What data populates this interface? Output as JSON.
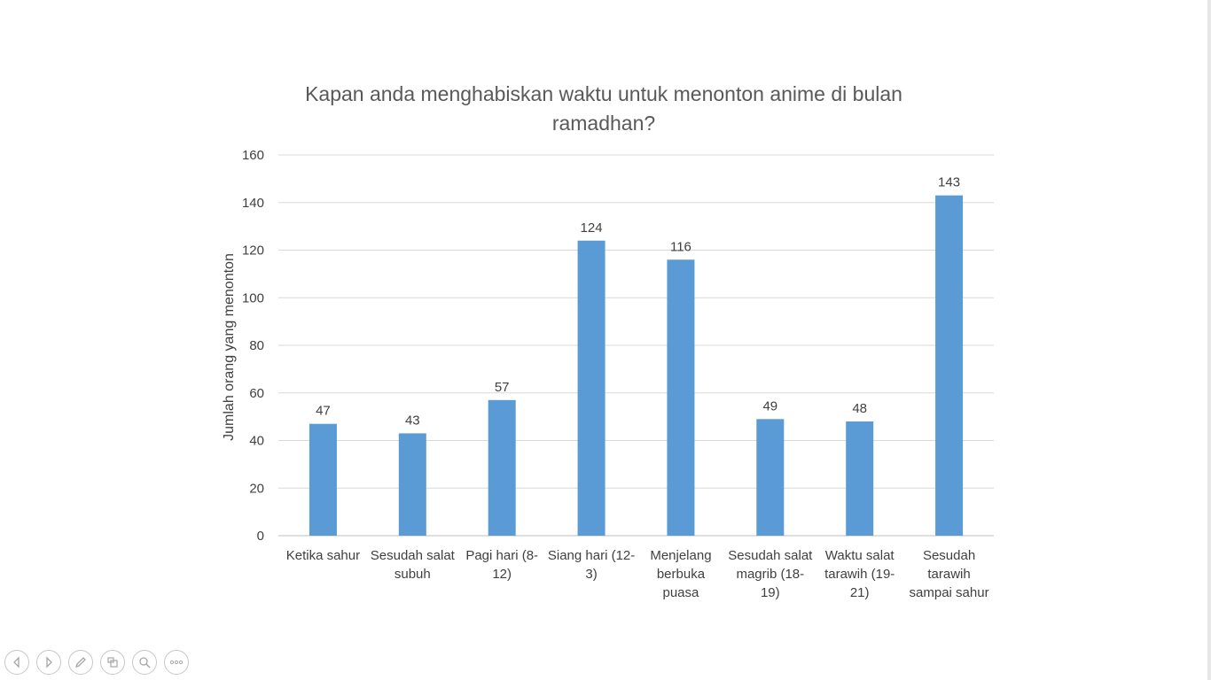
{
  "chart_data": {
    "type": "bar",
    "title": "Kapan anda menghabiskan waktu untuk menonton anime di bulan ramadhan?",
    "ylabel": "Jumlah orang yang menonton",
    "xlabel": "",
    "ylim": [
      0,
      160
    ],
    "yticks": [
      0,
      20,
      40,
      60,
      80,
      100,
      120,
      140,
      160
    ],
    "grid": true,
    "categories": [
      [
        "Ketika sahur"
      ],
      [
        "Sesudah salat",
        "subuh"
      ],
      [
        "Pagi hari (8-",
        "12)"
      ],
      [
        "Siang hari (12-",
        "3)"
      ],
      [
        "Menjelang",
        "berbuka",
        "puasa"
      ],
      [
        "Sesudah salat",
        "magrib (18-",
        "19)"
      ],
      [
        "Waktu salat",
        "tarawih (19-",
        "21)"
      ],
      [
        "Sesudah",
        "tarawih",
        "sampai sahur"
      ]
    ],
    "values": [
      47,
      43,
      57,
      124,
      116,
      49,
      48,
      143
    ],
    "colors": {
      "bar": "#5b9bd5",
      "grid": "#d9d9d9",
      "text": "#595959",
      "label": "#404040"
    }
  },
  "toolbar": {
    "buttons": [
      "previous-icon",
      "next-icon",
      "pen-icon",
      "slides-icon",
      "zoom-icon",
      "more-icon"
    ]
  }
}
